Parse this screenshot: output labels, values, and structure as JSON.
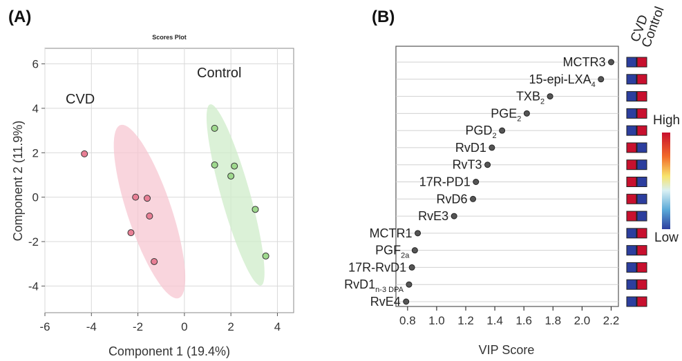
{
  "panels": {
    "a_label": "(A)",
    "b_label": "(B)"
  },
  "chart_data": [
    {
      "type": "scatter",
      "title": "Scores Plot",
      "xlabel": "Component 1 (19.4%)",
      "ylabel": "Component 2 (11.9%)",
      "xlim": [
        -6,
        4.7
      ],
      "ylim": [
        -5.2,
        6.7
      ],
      "xticks": [
        "-6",
        "-4",
        "-2",
        "0",
        "2",
        "4"
      ],
      "yticks": [
        "-4",
        "-2",
        "0",
        "2",
        "4",
        "6"
      ],
      "grid": true,
      "series": [
        {
          "name": "CVD",
          "color": "#e87f95",
          "ellipse_color": "#f7c7d1",
          "points": [
            {
              "x": -4.3,
              "y": 1.95
            },
            {
              "x": -2.1,
              "y": 0.0
            },
            {
              "x": -1.6,
              "y": -0.05
            },
            {
              "x": -1.5,
              "y": -0.85
            },
            {
              "x": -2.3,
              "y": -1.6
            },
            {
              "x": -1.3,
              "y": -2.9
            }
          ],
          "ellipse": {
            "cx": -1.5,
            "cy": -0.65,
            "rx": 4.55,
            "ry": 1.55,
            "angle_deg": -57
          }
        },
        {
          "name": "Control",
          "color": "#9fd98e",
          "ellipse_color": "#cfecc9",
          "points": [
            {
              "x": 1.3,
              "y": 3.1
            },
            {
              "x": 1.3,
              "y": 1.45
            },
            {
              "x": 2.15,
              "y": 1.4
            },
            {
              "x": 2.0,
              "y": 0.95
            },
            {
              "x": 3.05,
              "y": -0.55
            },
            {
              "x": 3.5,
              "y": -2.65
            }
          ],
          "ellipse": {
            "cx": 2.2,
            "cy": 0.1,
            "rx": 4.55,
            "ry": 1.05,
            "angle_deg": -63
          }
        }
      ],
      "annotations": [
        "CVD",
        "Control"
      ]
    },
    {
      "type": "scatter",
      "subtype": "vip_dot_plot",
      "xlabel": "VIP Score",
      "xlim": [
        0.72,
        2.25
      ],
      "xticks": [
        "0.8",
        "1.0",
        "1.2",
        "1.4",
        "1.6",
        "1.8",
        "2.0",
        "2.2"
      ],
      "grid": true,
      "heatmap_columns": [
        "CVD",
        "Control"
      ],
      "legend": {
        "high": "High",
        "low": "Low"
      },
      "colors": {
        "high": "#c8102e",
        "low": "#2c3e9e"
      },
      "items": [
        {
          "main": "MCTR3",
          "sub": "",
          "vip": 2.2,
          "cvd": "low",
          "control": "high"
        },
        {
          "main": "15-epi-LXA",
          "sub": "4",
          "vip": 2.13,
          "cvd": "low",
          "control": "high"
        },
        {
          "main": "TXB",
          "sub": "2",
          "vip": 1.78,
          "cvd": "low",
          "control": "high"
        },
        {
          "main": "PGE",
          "sub": "2",
          "vip": 1.62,
          "cvd": "low",
          "control": "high"
        },
        {
          "main": "PGD",
          "sub": "2",
          "vip": 1.45,
          "cvd": "low",
          "control": "high"
        },
        {
          "main": "RvD1",
          "sub": "",
          "vip": 1.38,
          "cvd": "high",
          "control": "low"
        },
        {
          "main": "RvT3",
          "sub": "",
          "vip": 1.35,
          "cvd": "high",
          "control": "low"
        },
        {
          "main": "17R-PD1",
          "sub": "",
          "vip": 1.27,
          "cvd": "high",
          "control": "low"
        },
        {
          "main": "RvD6",
          "sub": "",
          "vip": 1.25,
          "cvd": "high",
          "control": "low"
        },
        {
          "main": "RvE3",
          "sub": "",
          "vip": 1.12,
          "cvd": "high",
          "control": "low"
        },
        {
          "main": "MCTR1",
          "sub": "",
          "vip": 0.87,
          "cvd": "low",
          "control": "high"
        },
        {
          "main": "PGF",
          "sub": "2a",
          "vip": 0.85,
          "cvd": "low",
          "control": "high"
        },
        {
          "main": "17R-RvD1",
          "sub": "",
          "vip": 0.83,
          "cvd": "low",
          "control": "high"
        },
        {
          "main": "RvD1",
          "sub": "n-3 DPA",
          "vip": 0.81,
          "cvd": "low",
          "control": "high"
        },
        {
          "main": "RvE4",
          "sub": "",
          "vip": 0.79,
          "cvd": "low",
          "control": "high"
        }
      ]
    }
  ]
}
